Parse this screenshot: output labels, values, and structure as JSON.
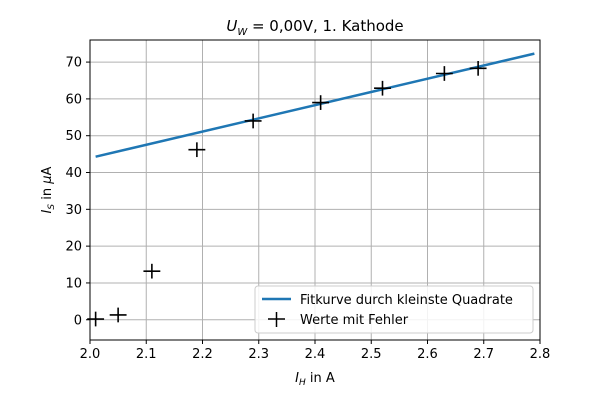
{
  "chart_data": {
    "type": "scatter",
    "title": {
      "var": "U",
      "sub": "W",
      "rest": " = 0,00V, 1. Kathode"
    },
    "xlabel": {
      "var": "I",
      "sub": "H",
      "rest": " in A"
    },
    "ylabel": {
      "var": "I",
      "sub": "S",
      "rest": " in ",
      "greek": "μ",
      "unit": "A"
    },
    "xlim": [
      2.0,
      2.8
    ],
    "ylim": [
      -5.5,
      76
    ],
    "xticks": [
      2.0,
      2.1,
      2.2,
      2.3,
      2.4,
      2.5,
      2.6,
      2.7,
      2.8
    ],
    "yticks": [
      0,
      10,
      20,
      30,
      40,
      50,
      60,
      70
    ],
    "xtick_labels": [
      "2.0",
      "2.1",
      "2.2",
      "2.3",
      "2.4",
      "2.5",
      "2.6",
      "2.7",
      "2.8"
    ],
    "ytick_labels": [
      "0",
      "10",
      "20",
      "30",
      "40",
      "50",
      "60",
      "70"
    ],
    "grid": true,
    "legend_position": "lower-right",
    "series": [
      {
        "name": "Fitkurve durch kleinste Quadrate",
        "kind": "line",
        "color": "#1f77b4",
        "x": [
          2.01,
          2.79
        ],
        "y": [
          44.3,
          72.3
        ]
      },
      {
        "name": "Werte mit Fehler",
        "kind": "errorbar",
        "color": "#000000",
        "x": [
          2.01,
          2.05,
          2.11,
          2.19,
          2.29,
          2.41,
          2.52,
          2.63,
          2.69
        ],
        "y": [
          0.2,
          1.3,
          13.2,
          46.2,
          54.0,
          59.0,
          62.9,
          66.9,
          68.3
        ],
        "xerr": 0.015,
        "yerr": 2.0
      }
    ]
  }
}
